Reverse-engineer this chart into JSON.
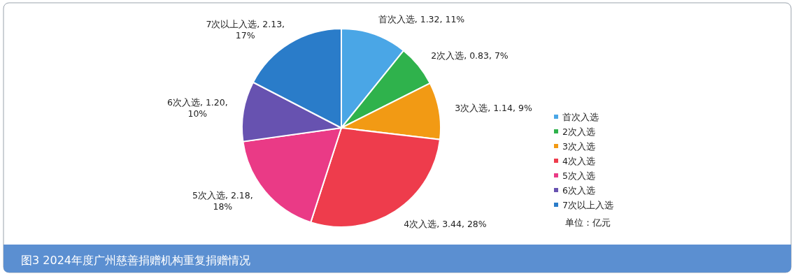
{
  "chart_data": {
    "type": "pie",
    "title": "图3  2024年度广州慈善捐赠机构重复捐赠情况",
    "categories": [
      "首次入选",
      "2次入选",
      "3次入选",
      "4次入选",
      "5次入选",
      "6次入选",
      "7次以上入选"
    ],
    "values": [
      1.32,
      0.83,
      1.14,
      3.44,
      2.18,
      1.2,
      2.13
    ],
    "value_labels": [
      "首次入选, 1.32, 11%",
      "2次入选, 0.83, 7%",
      "3次入选, 1.14, 9%",
      "4次入选, 3.44, 28%",
      "5次入选, 2.18, 18%",
      "6次入选, 1.20, 10%",
      "7次以上入选, 2.13, 17%"
    ],
    "colors": [
      "#4aa6e6",
      "#2fb24c",
      "#f29a14",
      "#ee3c4c",
      "#ea3a86",
      "#6752b0",
      "#2a7cc9"
    ],
    "legend": "right",
    "annotations": [
      "单位：亿元"
    ]
  }
}
